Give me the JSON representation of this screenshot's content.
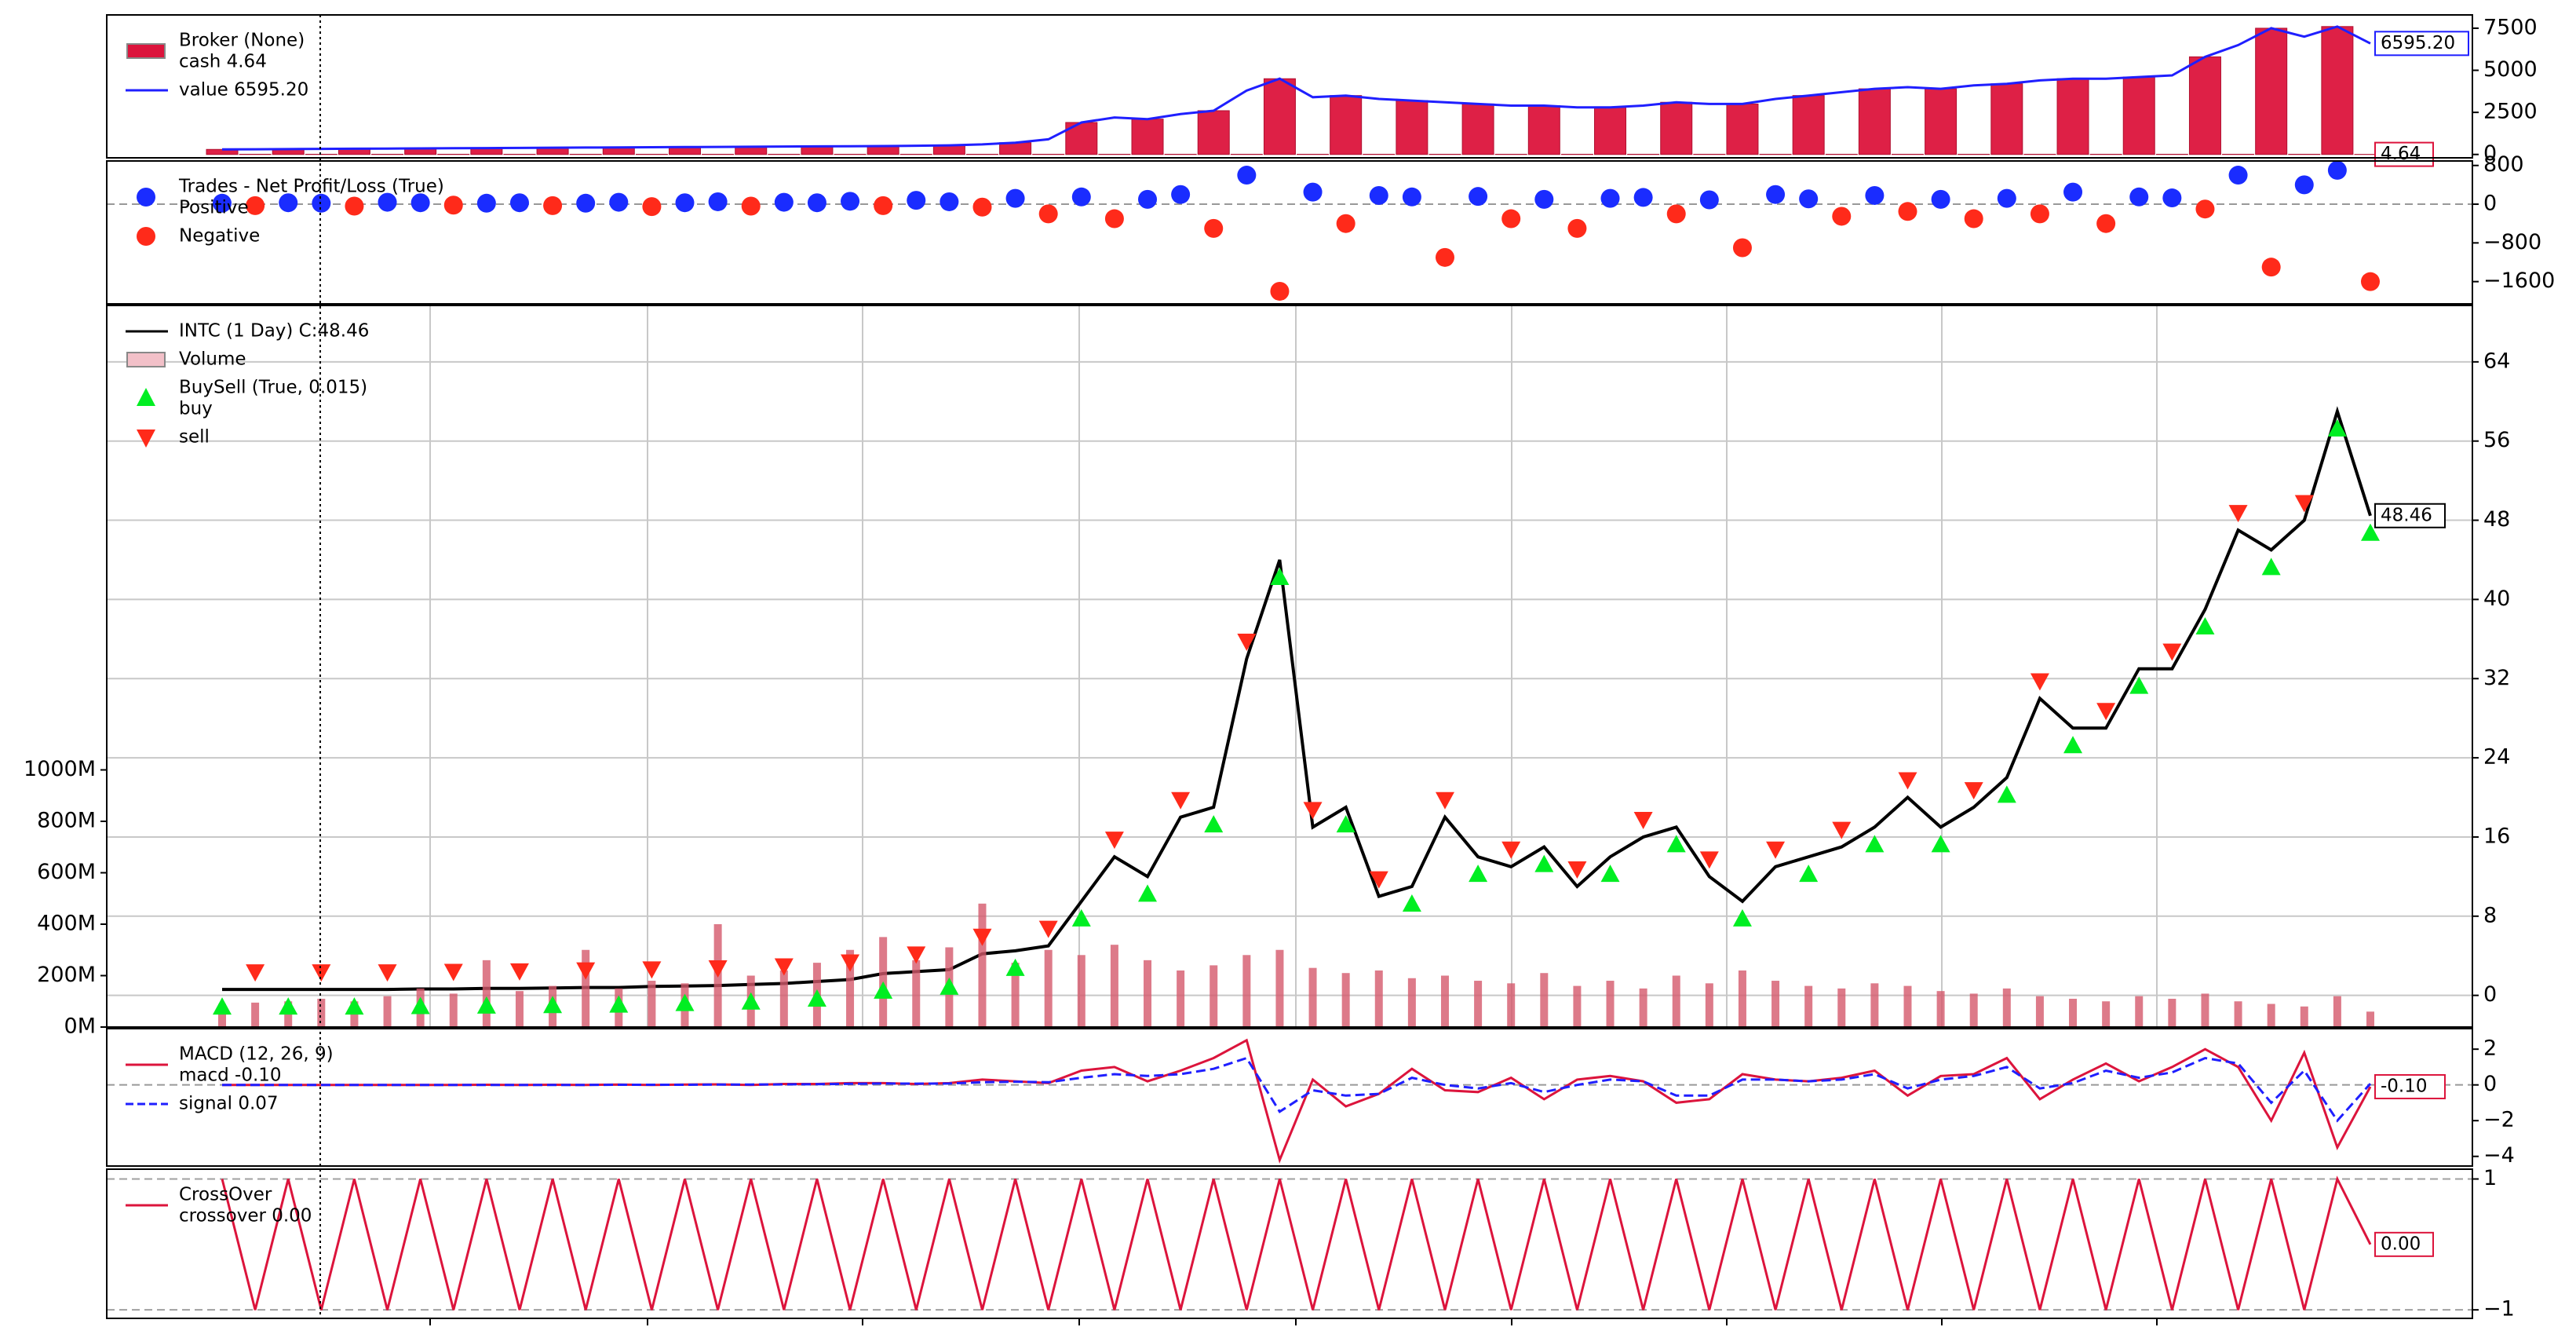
{
  "chart_data": [
    {
      "type": "line",
      "title": "Broker (None)",
      "ylim": [
        -200,
        8290
      ],
      "yticks": [
        0,
        2500,
        5000,
        7500
      ],
      "series": [
        {
          "name": "cash 4.64",
          "color": "#dc143c",
          "style": "bar",
          "last_label": "4.64",
          "values": [
            300,
            12,
            320,
            12,
            340,
            12,
            360,
            12,
            380,
            12,
            400,
            12,
            420,
            12,
            440,
            12,
            460,
            12,
            480,
            12,
            500,
            12,
            540,
            12,
            700,
            12,
            1900,
            12,
            2100,
            12,
            2600,
            12,
            4500,
            12,
            3500,
            12,
            3200,
            12,
            3000,
            12,
            2900,
            12,
            2800,
            12,
            3100,
            12,
            3000,
            12,
            3500,
            12,
            3900,
            12,
            3900,
            12,
            4200,
            12,
            4500,
            12,
            4600,
            12,
            5800,
            12,
            7500,
            12,
            7600,
            4.64
          ]
        },
        {
          "name": "value 6595.20",
          "color": "#1f1fff",
          "style": "line",
          "last_label": "6595.20",
          "values": [
            300,
            310,
            320,
            330,
            340,
            350,
            360,
            370,
            380,
            390,
            400,
            410,
            420,
            430,
            440,
            450,
            460,
            470,
            480,
            490,
            500,
            520,
            540,
            600,
            700,
            900,
            1900,
            2200,
            2100,
            2400,
            2600,
            3800,
            4500,
            3400,
            3500,
            3300,
            3200,
            3100,
            3000,
            2900,
            2900,
            2800,
            2800,
            2900,
            3100,
            3000,
            3000,
            3300,
            3500,
            3700,
            3900,
            4000,
            3900,
            4100,
            4200,
            4400,
            4500,
            4500,
            4600,
            4700,
            5800,
            6500,
            7500,
            7000,
            7600,
            6595.2
          ]
        }
      ]
    },
    {
      "type": "scatter",
      "title": "Trades - Net Profit/Loss (True)",
      "ylim": [
        -2060,
        893
      ],
      "yticks": [
        800,
        0,
        {
          "value": -800,
          "label": "−800"
        },
        {
          "value": -1600,
          "label": "−1600"
        }
      ],
      "series": [
        {
          "name": "Positive",
          "color": "#1a2cff",
          "values": [
            20,
            null,
            30,
            20,
            null,
            40,
            30,
            null,
            20,
            30,
            null,
            20,
            40,
            null,
            30,
            50,
            null,
            40,
            30,
            60,
            null,
            80,
            50,
            null,
            120,
            null,
            150,
            null,
            100,
            200,
            null,
            600,
            null,
            250,
            null,
            180,
            150,
            null,
            160,
            null,
            100,
            null,
            120,
            140,
            null,
            90,
            null,
            200,
            110,
            null,
            180,
            null,
            100,
            null,
            120,
            null,
            250,
            null,
            150,
            130,
            null,
            600,
            null,
            400,
            700,
            null
          ]
        },
        {
          "name": "Negative",
          "color": "#ff2a1a",
          "values": [
            null,
            -30,
            null,
            null,
            -40,
            null,
            null,
            -20,
            null,
            null,
            -30,
            null,
            null,
            -50,
            null,
            null,
            -40,
            null,
            null,
            null,
            -30,
            null,
            null,
            -60,
            null,
            -200,
            null,
            -300,
            null,
            null,
            -500,
            null,
            -1800,
            null,
            -400,
            null,
            null,
            -1100,
            null,
            -300,
            null,
            -500,
            null,
            null,
            -200,
            null,
            -900,
            null,
            null,
            -250,
            null,
            -150,
            null,
            -300,
            null,
            -200,
            null,
            -400,
            null,
            null,
            -100,
            null,
            -1300,
            null,
            null,
            -1600
          ]
        }
      ]
    },
    {
      "type": "line",
      "ylim": [
        -3.2,
        69.7
      ],
      "yticks": [
        0,
        8,
        16,
        24,
        32,
        40,
        48,
        56,
        64
      ],
      "grid": true,
      "y2lim": [
        0,
        2806000000
      ],
      "y2ticks": [
        {
          "value": 0,
          "label": "0M"
        },
        {
          "value": 200000000,
          "label": "200M"
        },
        {
          "value": 400000000,
          "label": "400M"
        },
        {
          "value": 600000000,
          "label": "600M"
        },
        {
          "value": 800000000,
          "label": "800M"
        },
        {
          "value": 1000000000,
          "label": "1000M"
        }
      ],
      "series": [
        {
          "name": "INTC (1 Day) C:48.46",
          "color": "#000000",
          "style": "line",
          "last_label": "48.46",
          "values": [
            0.6,
            0.6,
            0.6,
            0.6,
            0.6,
            0.6,
            0.65,
            0.65,
            0.7,
            0.7,
            0.75,
            0.8,
            0.8,
            0.9,
            0.95,
            1.0,
            1.1,
            1.2,
            1.4,
            1.6,
            2.2,
            2.4,
            2.6,
            4.2,
            4.5,
            5.0,
            9.5,
            14,
            12,
            18,
            19,
            34,
            44,
            17,
            19,
            10,
            11,
            18,
            14,
            13,
            15,
            11,
            14,
            16,
            17,
            12,
            9.5,
            13,
            14,
            15,
            17,
            20,
            17,
            19,
            22,
            30,
            27,
            27,
            33,
            33,
            39,
            47,
            45,
            48,
            59,
            48.46
          ]
        },
        {
          "name": "Volume",
          "color": "#d4596b",
          "style": "bar",
          "axis": "y2",
          "values": [
            90000000,
            95000000,
            100000000,
            110000000,
            100000000,
            120000000,
            150000000,
            130000000,
            260000000,
            140000000,
            160000000,
            300000000,
            150000000,
            180000000,
            170000000,
            400000000,
            200000000,
            220000000,
            250000000,
            300000000,
            350000000,
            260000000,
            310000000,
            480000000,
            250000000,
            300000000,
            280000000,
            320000000,
            260000000,
            220000000,
            240000000,
            280000000,
            300000000,
            230000000,
            210000000,
            220000000,
            190000000,
            200000000,
            180000000,
            170000000,
            210000000,
            160000000,
            180000000,
            150000000,
            200000000,
            170000000,
            220000000,
            180000000,
            160000000,
            150000000,
            170000000,
            160000000,
            140000000,
            130000000,
            150000000,
            120000000,
            110000000,
            100000000,
            120000000,
            110000000,
            130000000,
            100000000,
            90000000,
            80000000,
            120000000,
            60000000
          ]
        }
      ],
      "overlay": {
        "title": "BuySell (True, 0.015)",
        "series": [
          {
            "name": "buy",
            "color": "#00ee22",
            "style": "triangle-up",
            "values": [
              0.6,
              null,
              0.6,
              null,
              0.6,
              null,
              0.65,
              null,
              0.7,
              null,
              0.75,
              null,
              0.8,
              null,
              0.95,
              null,
              1.1,
              null,
              1.4,
              null,
              2.2,
              null,
              2.6,
              null,
              4.5,
              null,
              9.5,
              null,
              12,
              null,
              19,
              null,
              44,
              null,
              19,
              null,
              11,
              null,
              14,
              null,
              15,
              null,
              14,
              null,
              17,
              null,
              9.5,
              null,
              14,
              null,
              17,
              null,
              17,
              null,
              22,
              null,
              27,
              null,
              33,
              null,
              39,
              null,
              45,
              null,
              59,
              48.46
            ]
          },
          {
            "name": "sell",
            "color": "#ff2a1a",
            "style": "triangle-down",
            "values": [
              null,
              0.6,
              null,
              0.6,
              null,
              0.6,
              null,
              0.65,
              null,
              0.7,
              null,
              0.8,
              null,
              0.9,
              null,
              1.0,
              null,
              1.2,
              null,
              1.6,
              null,
              2.4,
              null,
              4.2,
              null,
              5.0,
              null,
              14,
              null,
              18,
              null,
              34,
              null,
              17,
              null,
              10,
              null,
              18,
              null,
              13,
              null,
              11,
              null,
              16,
              null,
              12,
              null,
              13,
              null,
              15,
              null,
              20,
              null,
              19,
              null,
              30,
              null,
              27,
              null,
              33,
              null,
              47,
              null,
              48,
              null,
              null
            ]
          }
        ]
      }
    },
    {
      "type": "line",
      "title": "MACD (12, 26, 9)",
      "ylim": [
        -4.54,
        3.15
      ],
      "yticks": [
        2,
        0,
        {
          "value": -2,
          "label": "−2"
        },
        {
          "value": -4,
          "label": "−4"
        }
      ],
      "series": [
        {
          "name": "macd -0.10",
          "color": "#dc143c",
          "style": "line",
          "last_label": "-0.10",
          "values": [
            0,
            0,
            0,
            0,
            0,
            0,
            0,
            0,
            0.01,
            0,
            0.01,
            0,
            0.02,
            0,
            0.02,
            0.03,
            0,
            0.05,
            0.05,
            0.1,
            0.1,
            0.05,
            0.1,
            0.3,
            0.2,
            0.1,
            0.8,
            1.0,
            0.2,
            0.8,
            1.5,
            2.5,
            -4.2,
            0.3,
            -1.2,
            -0.5,
            0.9,
            -0.3,
            -0.4,
            0.4,
            -0.8,
            0.3,
            0.5,
            0.2,
            -1.0,
            -0.8,
            0.6,
            0.3,
            0.2,
            0.4,
            0.8,
            -0.6,
            0.5,
            0.6,
            1.5,
            -0.8,
            0.3,
            1.2,
            0.2,
            1.0,
            2.0,
            1.0,
            -2.0,
            1.8,
            -3.5,
            -0.1
          ]
        },
        {
          "name": "signal 0.07",
          "color": "#1f1fff",
          "style": "line",
          "dashed": true,
          "values": [
            0,
            0,
            0,
            0,
            0,
            0,
            0,
            0,
            0,
            0,
            0,
            0,
            0.01,
            0.01,
            0.01,
            0.02,
            0.02,
            0.03,
            0.04,
            0.06,
            0.08,
            0.07,
            0.08,
            0.15,
            0.18,
            0.15,
            0.4,
            0.6,
            0.5,
            0.6,
            0.9,
            1.5,
            -1.5,
            -0.3,
            -0.6,
            -0.5,
            0.4,
            0,
            -0.2,
            0.1,
            -0.4,
            0,
            0.3,
            0.2,
            -0.6,
            -0.6,
            0.3,
            0.3,
            0.2,
            0.3,
            0.6,
            -0.2,
            0.3,
            0.5,
            1.0,
            -0.2,
            0.1,
            0.8,
            0.4,
            0.7,
            1.5,
            1.2,
            -1.0,
            0.8,
            -2.0,
            0.07
          ]
        }
      ]
    },
    {
      "type": "line",
      "title": "CrossOver",
      "ylim": [
        -1.13,
        1.15
      ],
      "yticks": [
        1,
        {
          "value": -1,
          "label": "−1"
        }
      ],
      "grid": "dashed",
      "series": [
        {
          "name": "crossover 0.00",
          "color": "#dc143c",
          "style": "line",
          "last_label": "0.00",
          "values": [
            1,
            -1,
            1,
            -1,
            1,
            -1,
            1,
            -1,
            1,
            -1,
            1,
            -1,
            1,
            -1,
            1,
            -1,
            1,
            -1,
            1,
            -1,
            1,
            -1,
            1,
            -1,
            1,
            -1,
            1,
            -1,
            1,
            -1,
            1,
            -1,
            1,
            -1,
            1,
            -1,
            1,
            -1,
            1,
            -1,
            1,
            -1,
            1,
            -1,
            1,
            -1,
            1,
            -1,
            1,
            -1,
            1,
            -1,
            1,
            -1,
            1,
            -1,
            1,
            -1,
            1,
            -1,
            1,
            -1,
            1,
            -1,
            1,
            0
          ]
        }
      ]
    }
  ]
}
